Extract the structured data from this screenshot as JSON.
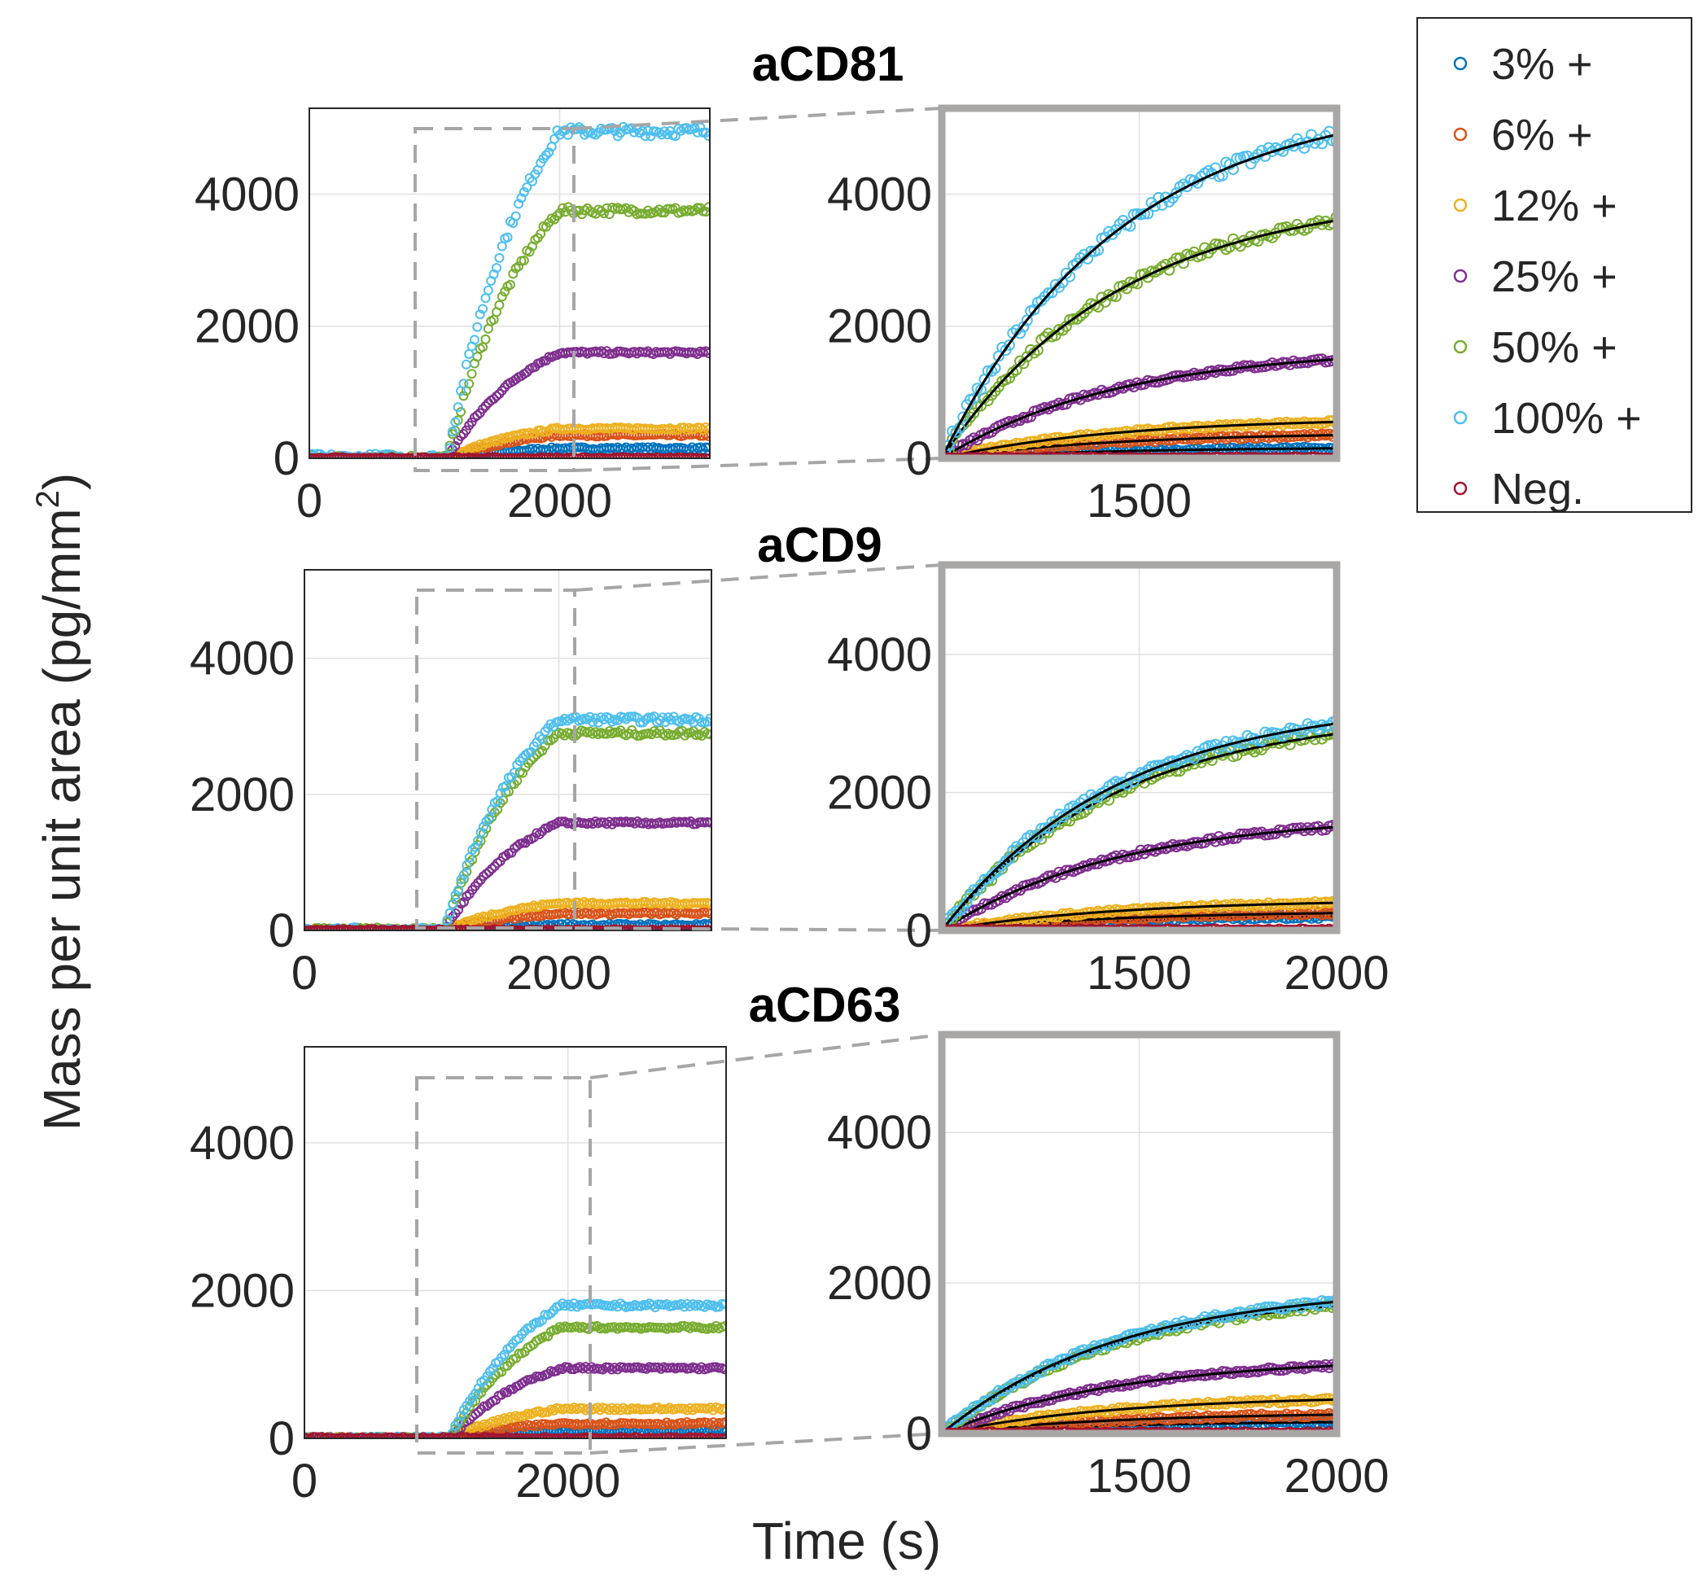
{
  "figure": {
    "ylabel": "Mass per unit area (pg/mm",
    "ylabel_sup": "2",
    "ylabel_close": ")",
    "xlabel": "Time (s)"
  },
  "legend": {
    "placement": "top-right, outside",
    "entries": [
      {
        "label": "3% +",
        "color": "#0072BD"
      },
      {
        "label": "6% +",
        "color": "#D95319"
      },
      {
        "label": "12% +",
        "color": "#EDB120"
      },
      {
        "label": "25% +",
        "color": "#7E2F8E"
      },
      {
        "label": "50% +",
        "color": "#77AC30"
      },
      {
        "label": "100% +",
        "color": "#4DBEEE"
      },
      {
        "label": "Neg.",
        "color": "#A2142F"
      }
    ]
  },
  "chart_data": [
    {
      "panel": "aCD81 overview",
      "type": "scatter",
      "title": "",
      "xlim": [
        0,
        3200
      ],
      "ylim": [
        0,
        5300
      ],
      "xticks": [
        0,
        2000
      ],
      "yticks": [
        0,
        2000,
        4000
      ],
      "grid": true,
      "series": [
        {
          "name": "3% +",
          "plateau": 150,
          "t_start": 1100,
          "t_end": 2000
        },
        {
          "name": "6% +",
          "plateau": 350,
          "t_start": 1100,
          "t_end": 2000
        },
        {
          "name": "12% +",
          "plateau": 450,
          "t_start": 1100,
          "t_end": 2000
        },
        {
          "name": "25% +",
          "plateau": 1600,
          "t_start": 1100,
          "t_end": 2000
        },
        {
          "name": "50% +",
          "plateau": 3750,
          "t_start": 1100,
          "t_end": 2000
        },
        {
          "name": "100% +",
          "plateau": 4950,
          "t_start": 1100,
          "t_end": 2000
        },
        {
          "name": "Neg.",
          "plateau": 0,
          "t_start": 1100,
          "t_end": 2000
        }
      ]
    },
    {
      "panel": "aCD81 zoom",
      "type": "scatter",
      "title": "aCD81",
      "xlim": [
        1000,
        2000
      ],
      "ylim": [
        0,
        5300
      ],
      "xticks": [
        1500
      ],
      "yticks": [
        0,
        2000,
        4000
      ],
      "grid": true,
      "series": [
        {
          "name": "3% +",
          "end_value": 150
        },
        {
          "name": "6% +",
          "end_value": 350
        },
        {
          "name": "12% +",
          "end_value": 550
        },
        {
          "name": "25% +",
          "end_value": 1500
        },
        {
          "name": "50% +",
          "end_value": 3600
        },
        {
          "name": "100% +",
          "end_value": 4900
        },
        {
          "name": "Neg.",
          "end_value": 0
        }
      ]
    },
    {
      "panel": "aCD9 overview",
      "type": "scatter",
      "title": "",
      "xlim": [
        0,
        3200
      ],
      "ylim": [
        0,
        5300
      ],
      "xticks": [
        0,
        2000
      ],
      "yticks": [
        0,
        2000,
        4000
      ],
      "grid": true,
      "series": [
        {
          "name": "3% +",
          "plateau": 80,
          "t_start": 1100,
          "t_end": 2000
        },
        {
          "name": "6% +",
          "plateau": 250,
          "t_start": 1100,
          "t_end": 2000
        },
        {
          "name": "12% +",
          "plateau": 400,
          "t_start": 1100,
          "t_end": 2000
        },
        {
          "name": "25% +",
          "plateau": 1580,
          "t_start": 1100,
          "t_end": 2000
        },
        {
          "name": "50% +",
          "plateau": 2900,
          "t_start": 1100,
          "t_end": 2000
        },
        {
          "name": "100% +",
          "plateau": 3100,
          "t_start": 1100,
          "t_end": 2000
        },
        {
          "name": "Neg.",
          "plateau": 0,
          "t_start": 1100,
          "t_end": 2000
        }
      ]
    },
    {
      "panel": "aCD9 zoom",
      "type": "scatter",
      "title": "aCD9",
      "xlim": [
        1000,
        2000
      ],
      "ylim": [
        0,
        5300
      ],
      "xticks": [
        1500,
        2000
      ],
      "yticks": [
        0,
        2000,
        4000
      ],
      "grid": true,
      "series": [
        {
          "name": "3% +",
          "end_value": 200
        },
        {
          "name": "6% +",
          "end_value": 250
        },
        {
          "name": "12% +",
          "end_value": 400
        },
        {
          "name": "25% +",
          "end_value": 1500
        },
        {
          "name": "50% +",
          "end_value": 2850
        },
        {
          "name": "100% +",
          "end_value": 3000
        },
        {
          "name": "Neg.",
          "end_value": 0
        }
      ]
    },
    {
      "panel": "aCD63 overview",
      "type": "scatter",
      "title": "",
      "xlim": [
        0,
        3200
      ],
      "ylim": [
        0,
        5300
      ],
      "xticks": [
        0,
        2000
      ],
      "yticks": [
        0,
        2000,
        4000
      ],
      "grid": true,
      "series": [
        {
          "name": "3% +",
          "plateau": 100,
          "t_start": 1100,
          "t_end": 1950
        },
        {
          "name": "6% +",
          "plateau": 200,
          "t_start": 1100,
          "t_end": 1950
        },
        {
          "name": "12% +",
          "plateau": 400,
          "t_start": 1100,
          "t_end": 1950
        },
        {
          "name": "25% +",
          "plateau": 950,
          "t_start": 1100,
          "t_end": 1950
        },
        {
          "name": "50% +",
          "plateau": 1500,
          "t_start": 1100,
          "t_end": 1950
        },
        {
          "name": "100% +",
          "plateau": 1800,
          "t_start": 1100,
          "t_end": 1950
        },
        {
          "name": "Neg.",
          "plateau": 0,
          "t_start": 1100,
          "t_end": 1950
        }
      ]
    },
    {
      "panel": "aCD63 zoom",
      "type": "scatter",
      "title": "aCD63",
      "xlim": [
        1000,
        2000
      ],
      "ylim": [
        0,
        5300
      ],
      "xticks": [
        1500,
        2000
      ],
      "yticks": [
        0,
        2000,
        4000
      ],
      "grid": true,
      "series": [
        {
          "name": "3% +",
          "end_value": 150
        },
        {
          "name": "6% +",
          "end_value": 250
        },
        {
          "name": "12% +",
          "end_value": 450
        },
        {
          "name": "25% +",
          "end_value": 900
        },
        {
          "name": "50% +",
          "end_value": 1700
        },
        {
          "name": "100% +",
          "end_value": 1750
        },
        {
          "name": "Neg.",
          "end_value": 0
        }
      ]
    }
  ]
}
